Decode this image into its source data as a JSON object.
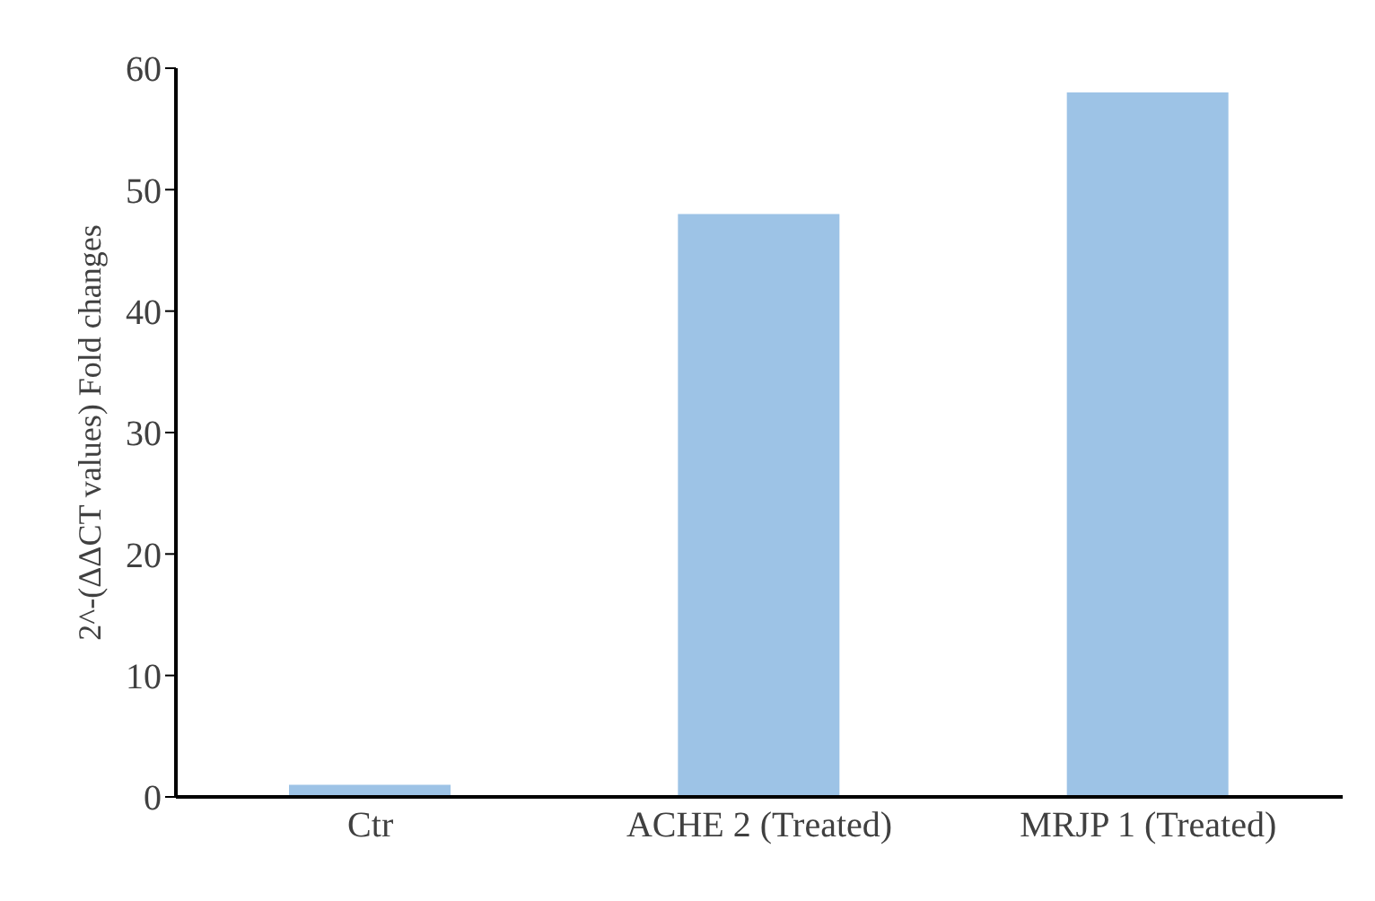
{
  "chart_data": {
    "type": "bar",
    "ylabel": "2^-(ΔΔCT values) Fold changes",
    "categories": [
      "Ctr",
      "ACHE 2 (Treated)",
      "MRJP 1 (Treated)"
    ],
    "values": [
      1,
      48,
      58
    ],
    "color": "#9dc3e6",
    "ylim": [
      0,
      60
    ],
    "yticks": [
      0,
      10,
      20,
      30,
      40,
      50,
      60
    ],
    "grid": false,
    "legend": false
  }
}
